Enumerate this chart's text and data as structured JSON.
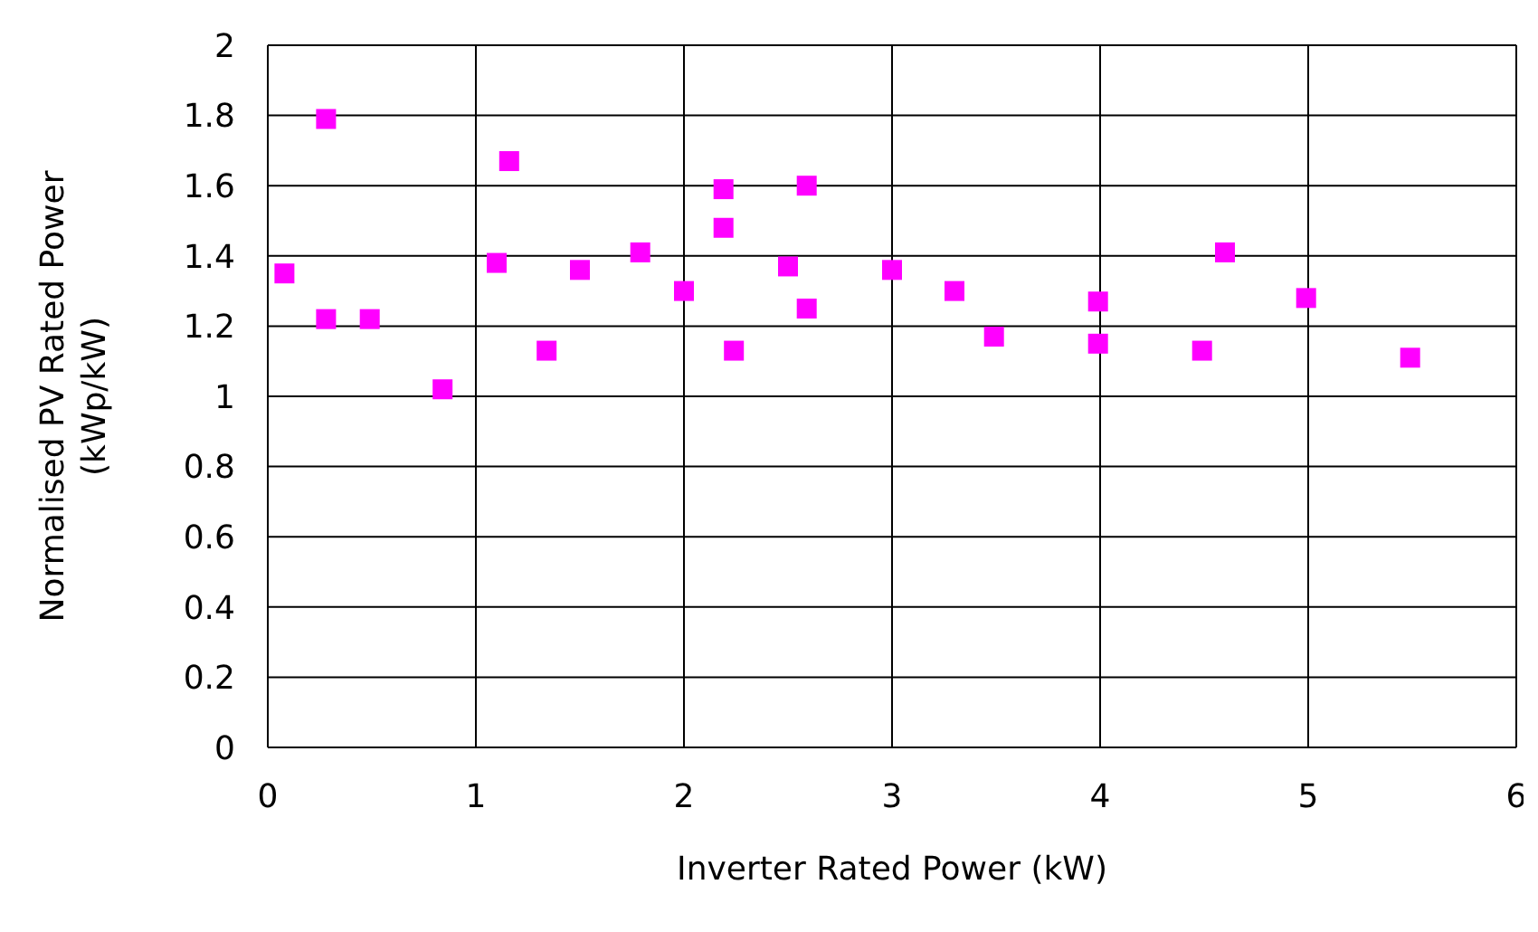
{
  "chart_data": {
    "type": "scatter",
    "xlabel": "Inverter Rated Power (kW)",
    "ylabel": "Normalised PV Rated Power (kWp/kW)",
    "x": [
      0.08,
      0.28,
      0.28,
      0.49,
      0.84,
      1.1,
      1.16,
      1.34,
      1.5,
      1.79,
      2.0,
      2.19,
      2.19,
      2.24,
      2.5,
      2.59,
      2.59,
      3.0,
      3.3,
      3.49,
      3.99,
      3.99,
      4.49,
      4.6,
      4.99,
      5.49
    ],
    "series": [
      {
        "color": "#ff00ff",
        "values": [
          1.35,
          1.79,
          1.22,
          1.22,
          1.02,
          1.38,
          1.67,
          1.13,
          1.36,
          1.41,
          1.3,
          1.59,
          1.48,
          1.13,
          1.37,
          1.6,
          1.25,
          1.36,
          1.3,
          1.17,
          1.27,
          1.15,
          1.13,
          1.41,
          1.28,
          1.11
        ]
      }
    ],
    "xlim": [
      0,
      6
    ],
    "xticks": [
      0,
      1,
      2,
      3,
      4,
      5,
      6
    ],
    "ylim": [
      0,
      2
    ],
    "yticks": [
      0,
      0.2,
      0.4,
      0.6,
      0.8,
      1,
      1.2,
      1.4,
      1.6,
      1.8,
      2
    ],
    "grid": true,
    "marker": "square",
    "legend": false
  }
}
